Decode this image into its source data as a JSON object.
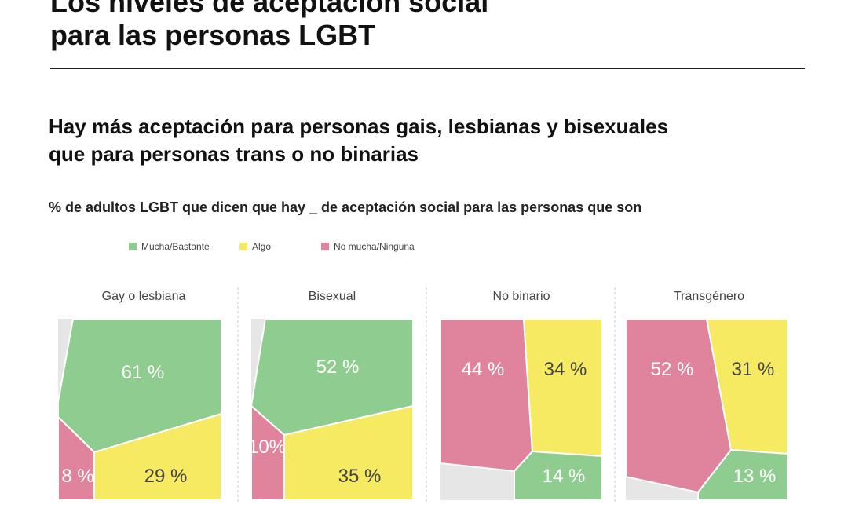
{
  "header": {
    "title_line1": "Los niveles de aceptación social",
    "title_line2": "para las personas LGBT"
  },
  "chart_data": {
    "type": "voronoi-treemap",
    "title_line1": "Hay más aceptación para personas gais, lesbianas y bisexuales",
    "title_line2": "que para personas trans o no binarias",
    "subtitle": "% de adultos LGBT que dicen que hay _ de aceptación social para las personas que son",
    "legend": [
      {
        "name": "Mucha/Bastante",
        "color": "#8fcc8f"
      },
      {
        "name": "Algo",
        "color": "#f7ea63"
      },
      {
        "name": "No mucha/Ninguna",
        "color": "#e0849e"
      }
    ],
    "residual_color": "#e6e6e6",
    "panels": [
      {
        "category": "Gay o lesbiana",
        "values": [
          {
            "series": "Mucha/Bastante",
            "value": 61,
            "label": "61 %"
          },
          {
            "series": "Algo",
            "value": 29,
            "label": "29 %"
          },
          {
            "series": "No mucha/Ninguna",
            "value": 8,
            "label": "8 %"
          }
        ]
      },
      {
        "category": "Bisexual",
        "values": [
          {
            "series": "Mucha/Bastante",
            "value": 52,
            "label": "52 %"
          },
          {
            "series": "Algo",
            "value": 35,
            "label": "35 %"
          },
          {
            "series": "No mucha/Ninguna",
            "value": 10,
            "label": "10%"
          }
        ]
      },
      {
        "category": "No binario",
        "values": [
          {
            "series": "No mucha/Ninguna",
            "value": 44,
            "label": "44 %"
          },
          {
            "series": "Algo",
            "value": 34,
            "label": "34 %"
          },
          {
            "series": "Mucha/Bastante",
            "value": 14,
            "label": "14 %"
          }
        ]
      },
      {
        "category": "Transgénero",
        "values": [
          {
            "series": "No mucha/Ninguna",
            "value": 52,
            "label": "52 %"
          },
          {
            "series": "Algo",
            "value": 31,
            "label": "31 %"
          },
          {
            "series": "Mucha/Bastante",
            "value": 13,
            "label": "13 %"
          }
        ]
      }
    ]
  }
}
